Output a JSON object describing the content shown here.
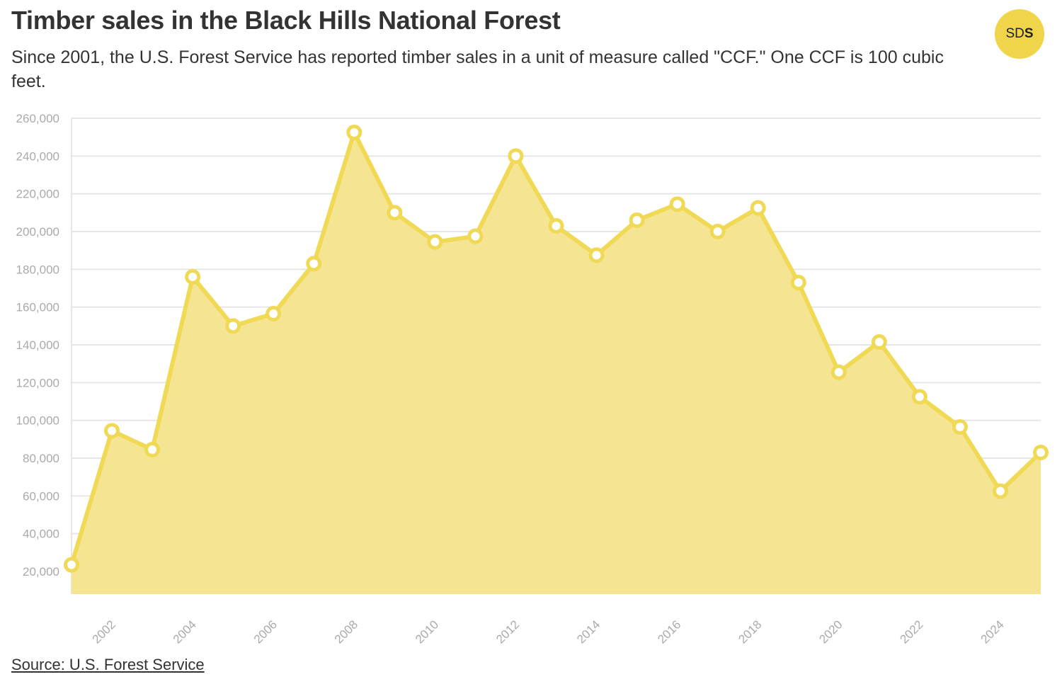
{
  "header": {
    "title": "Timber sales in the Black Hills National Forest",
    "subtitle": "Since 2001, the U.S. Forest Service has reported timber sales in a unit of measure called \"CCF.\" One CCF is 100 cubic feet.",
    "logo_light": "SD",
    "logo_bold": "S"
  },
  "footer": {
    "source": "Source: U.S. Forest Service"
  },
  "colors": {
    "area_fill": "#f5e592",
    "line": "#f0d954",
    "marker_fill": "#ffffff",
    "grid": "#e6e6e6",
    "logo_bg": "#f0d54a"
  },
  "chart_data": {
    "type": "area",
    "x": [
      2001,
      2002,
      2003,
      2004,
      2005,
      2006,
      2007,
      2008,
      2009,
      2010,
      2011,
      2012,
      2013,
      2014,
      2015,
      2016,
      2017,
      2018,
      2019,
      2020,
      2021,
      2022,
      2023,
      2024,
      2025
    ],
    "values": [
      23500,
      94500,
      84500,
      176000,
      150000,
      156500,
      183000,
      252500,
      210000,
      194500,
      197500,
      240000,
      203000,
      187500,
      206000,
      214500,
      200000,
      212500,
      173000,
      125500,
      141500,
      112500,
      96500,
      62500,
      83000
    ],
    "ylim": [
      8000,
      260000
    ],
    "yticks": [
      "20,000",
      "40,000",
      "60,000",
      "80,000",
      "100,000",
      "120,000",
      "140,000",
      "160,000",
      "180,000",
      "200,000",
      "220,000",
      "240,000",
      "260,000"
    ],
    "ytick_values": [
      20000,
      40000,
      60000,
      80000,
      100000,
      120000,
      140000,
      160000,
      180000,
      200000,
      220000,
      240000,
      260000
    ],
    "xticks": [
      "2002",
      "2004",
      "2006",
      "2008",
      "2010",
      "2012",
      "2014",
      "2016",
      "2018",
      "2020",
      "2022",
      "2024"
    ],
    "xtick_values": [
      2002,
      2004,
      2006,
      2008,
      2010,
      2012,
      2014,
      2016,
      2018,
      2020,
      2022,
      2024
    ],
    "xlim": [
      2001,
      2025
    ],
    "grid": true
  }
}
